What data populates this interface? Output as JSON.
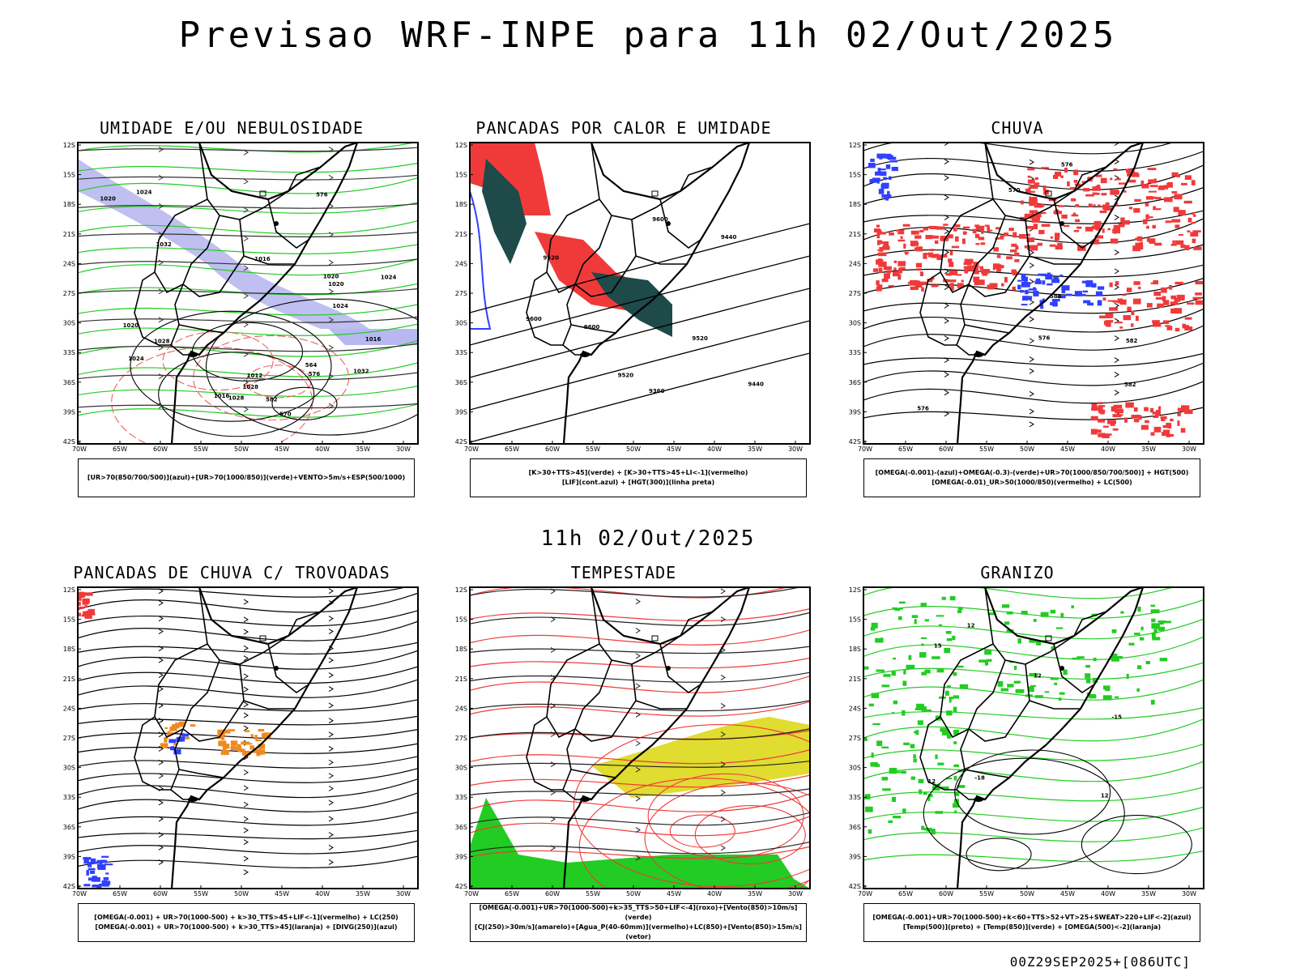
{
  "header": {
    "title": "Previsao WRF-INPE  para 11h 02/Out/2025"
  },
  "middle_title": "11h 02/Out/2025",
  "footer": "00Z29SEP2025+[086UTC]",
  "axis": {
    "lat_labels": [
      "12S",
      "15S",
      "18S",
      "21S",
      "24S",
      "27S",
      "30S",
      "33S",
      "36S",
      "39S",
      "42S"
    ],
    "lon_labels": [
      "70W",
      "65W",
      "60W",
      "55W",
      "50W",
      "45W",
      "40W",
      "35W",
      "30W"
    ]
  },
  "panels": [
    {
      "id": "umidade",
      "title": "UMIDADE E/OU NEBULOSIDADE",
      "legend": [
        "[UR>70(850/700/500)](azul)+[UR>70(1000/850)](verde)+VENTO>5m/s+ESP(500/1000)"
      ],
      "contour_labels": [
        "1016",
        "1012",
        "1016",
        "1020",
        "1024",
        "1024",
        "1028",
        "1020",
        "1020",
        "1032",
        "1028",
        "1032",
        "1028",
        "570",
        "576",
        "582",
        "564",
        "576",
        "1016",
        "1020",
        "1024",
        "1024"
      ]
    },
    {
      "id": "pancadas-calor",
      "title": "PANCADAS POR CALOR E UMIDADE",
      "legend": [
        "[K>30+TTS>45](verde) + [K>30+TTS>45+LI<-1](vermelho)",
        "[LIF](cont.azul) + [HGT(300)](linha preta)"
      ],
      "contour_labels": [
        "9600",
        "9520",
        "9600",
        "9600",
        "9520",
        "9520",
        "9440",
        "9440",
        "9360"
      ]
    },
    {
      "id": "chuva",
      "title": "CHUVA",
      "legend": [
        "[OMEGA(-0.001)-(azul)+OMEGA(-0.3)-(verde)+UR>70(1000/850/700/500)] + HGT(500)",
        "[OMEGA(-0.01)_UR>50(1000/850)(vermelho) + LC(500)"
      ],
      "contour_labels": [
        "576",
        "582",
        "588",
        "576",
        "570",
        "576",
        "582"
      ]
    },
    {
      "id": "trovoadas",
      "title": "PANCADAS DE CHUVA C/ TROVOADAS",
      "legend": [
        "[OMEGA(-0.001) + UR>70(1000-500) + k>30_TTS>45+LIF<-1](vermelho) + LC(250)",
        "[OMEGA(-0.001) + UR>70(1000-500) + k>30_TTS>45](laranja) + [DIVG(250)](azul)"
      ],
      "contour_labels": []
    },
    {
      "id": "tempestade",
      "title": "TEMPESTADE",
      "legend": [
        "[OMEGA(-0.001)+UR>70(1000-500)+k>35_TTS>50+LIF<-4](roxo)+[Vento(850)>10m/s](verde)",
        "[CJ(250)>30m/s](amarelo)+[Agua_P(40-60mm)](vermelho)+LC(850)+[Vento(850)>15m/s](vetor)"
      ],
      "contour_labels": []
    },
    {
      "id": "granizo",
      "title": "GRANIZO",
      "legend": [
        "[OMEGA(-0.001)+UR>70(1000-500)+k<60+TTS>52+VT>25+SWEAT>220+LIF<-2](azul)",
        "[Temp(500)](preto) + [Temp(850)](verde) + [OMEGA(500)<-2](laranja)"
      ],
      "contour_labels": [
        "12",
        "12",
        "15",
        "12",
        "-18",
        "-15",
        "12"
      ]
    }
  ],
  "colors": {
    "red": "#f03a3a",
    "blue": "#3040ff",
    "green": "#22cc22",
    "lavender": "#b8b8f0",
    "darkteal": "#1f4a4a",
    "yellow": "#e0dc30",
    "orange": "#f08a20"
  }
}
